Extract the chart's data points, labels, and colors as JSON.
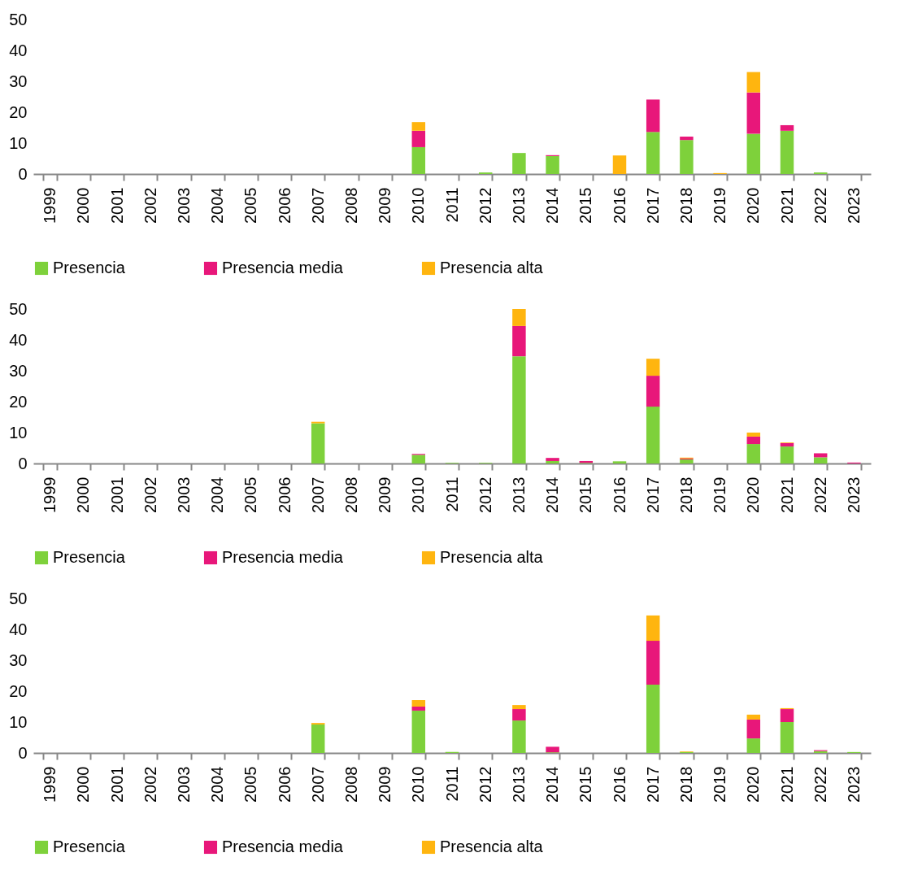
{
  "chart_data": [
    {
      "type": "bar",
      "stacked": true,
      "legend": "bottom",
      "grid": false,
      "ylim": [
        0,
        50
      ],
      "yticks": [
        0,
        10,
        20,
        30,
        40,
        50
      ],
      "categories": [
        "1999",
        "2000",
        "2001",
        "2002",
        "2003",
        "2004",
        "2005",
        "2006",
        "2007",
        "2008",
        "2009",
        "2010",
        "2011",
        "2012",
        "2013",
        "2014",
        "2015",
        "2016",
        "2017",
        "2018",
        "2019",
        "2020",
        "2021",
        "2022",
        "2023"
      ],
      "series": [
        {
          "name": "Presencia",
          "color": "#7ed13b",
          "values": [
            0,
            0,
            0,
            0,
            0,
            0,
            0,
            0,
            0,
            0,
            0,
            8.7,
            0,
            0.5,
            6.8,
            5.8,
            0,
            0,
            13.6,
            11,
            0,
            13,
            14,
            0.5,
            0
          ]
        },
        {
          "name": "Presencia media",
          "color": "#e8177a",
          "values": [
            0,
            0,
            0,
            0,
            0,
            0,
            0,
            0,
            0,
            0,
            0,
            5.3,
            0,
            0,
            0,
            0.3,
            0,
            0,
            10.5,
            1.1,
            0,
            13.4,
            1.8,
            0,
            0
          ]
        },
        {
          "name": "Presencia alta",
          "color": "#ffb50f",
          "values": [
            0,
            0,
            0,
            0,
            0,
            0,
            0,
            0,
            0,
            0,
            0,
            2.8,
            0,
            0,
            0,
            0,
            0,
            6,
            0,
            0,
            0.3,
            6.6,
            0,
            0,
            0
          ]
        }
      ]
    },
    {
      "type": "bar",
      "stacked": true,
      "legend": "bottom",
      "grid": false,
      "ylim": [
        0,
        50
      ],
      "yticks": [
        0,
        10,
        20,
        30,
        40,
        50
      ],
      "categories": [
        "1999",
        "2000",
        "2001",
        "2002",
        "2003",
        "2004",
        "2005",
        "2006",
        "2007",
        "2008",
        "2009",
        "2010",
        "2011",
        "2012",
        "2013",
        "2014",
        "2015",
        "2016",
        "2017",
        "2018",
        "2019",
        "2020",
        "2021",
        "2022",
        "2023"
      ],
      "series": [
        {
          "name": "Presencia",
          "color": "#7ed13b",
          "values": [
            0,
            0,
            0,
            0,
            0,
            0,
            0,
            0,
            13,
            0,
            0,
            2.8,
            0.2,
            0.2,
            34.7,
            0.8,
            0.2,
            0.7,
            18.4,
            1.3,
            0,
            6.3,
            5.5,
            2,
            0
          ]
        },
        {
          "name": "Presencia media",
          "color": "#e8177a",
          "values": [
            0,
            0,
            0,
            0,
            0,
            0,
            0,
            0,
            0,
            0,
            0,
            0.3,
            0,
            0,
            9.8,
            1,
            0.6,
            0,
            10,
            0.3,
            0,
            2.4,
            1.1,
            1.3,
            0.3
          ]
        },
        {
          "name": "Presencia alta",
          "color": "#ffb50f",
          "values": [
            0,
            0,
            0,
            0,
            0,
            0,
            0,
            0,
            0.5,
            0,
            0,
            0,
            0,
            0,
            5.5,
            0,
            0,
            0,
            5.5,
            0.3,
            0,
            1.3,
            0.2,
            0,
            0
          ]
        }
      ]
    },
    {
      "type": "bar",
      "stacked": true,
      "legend": "bottom",
      "grid": false,
      "ylim": [
        0,
        50
      ],
      "yticks": [
        0,
        10,
        20,
        30,
        40,
        50
      ],
      "categories": [
        "1999",
        "2000",
        "2001",
        "2002",
        "2003",
        "2004",
        "2005",
        "2006",
        "2007",
        "2008",
        "2009",
        "2010",
        "2011",
        "2012",
        "2013",
        "2014",
        "2015",
        "2016",
        "2017",
        "2018",
        "2019",
        "2020",
        "2021",
        "2022",
        "2023"
      ],
      "series": [
        {
          "name": "Presencia",
          "color": "#7ed13b",
          "values": [
            0,
            0,
            0,
            0,
            0,
            0,
            0,
            0,
            9.2,
            0,
            0,
            13.7,
            0.3,
            0,
            10.5,
            0.2,
            0,
            0,
            22.1,
            0.3,
            0,
            4.7,
            10,
            0.6,
            0.3
          ]
        },
        {
          "name": "Presencia media",
          "color": "#e8177a",
          "values": [
            0,
            0,
            0,
            0,
            0,
            0,
            0,
            0,
            0,
            0,
            0,
            1.3,
            0,
            0,
            3.7,
            1.8,
            0,
            0,
            14.2,
            0,
            0,
            6.1,
            4.2,
            0.3,
            0
          ]
        },
        {
          "name": "Presencia alta",
          "color": "#ffb50f",
          "values": [
            0,
            0,
            0,
            0,
            0,
            0,
            0,
            0,
            0.5,
            0,
            0,
            2.1,
            0,
            0,
            1.3,
            0,
            0,
            0,
            8.2,
            0.2,
            0,
            1.6,
            0.3,
            0,
            0
          ]
        }
      ]
    }
  ]
}
